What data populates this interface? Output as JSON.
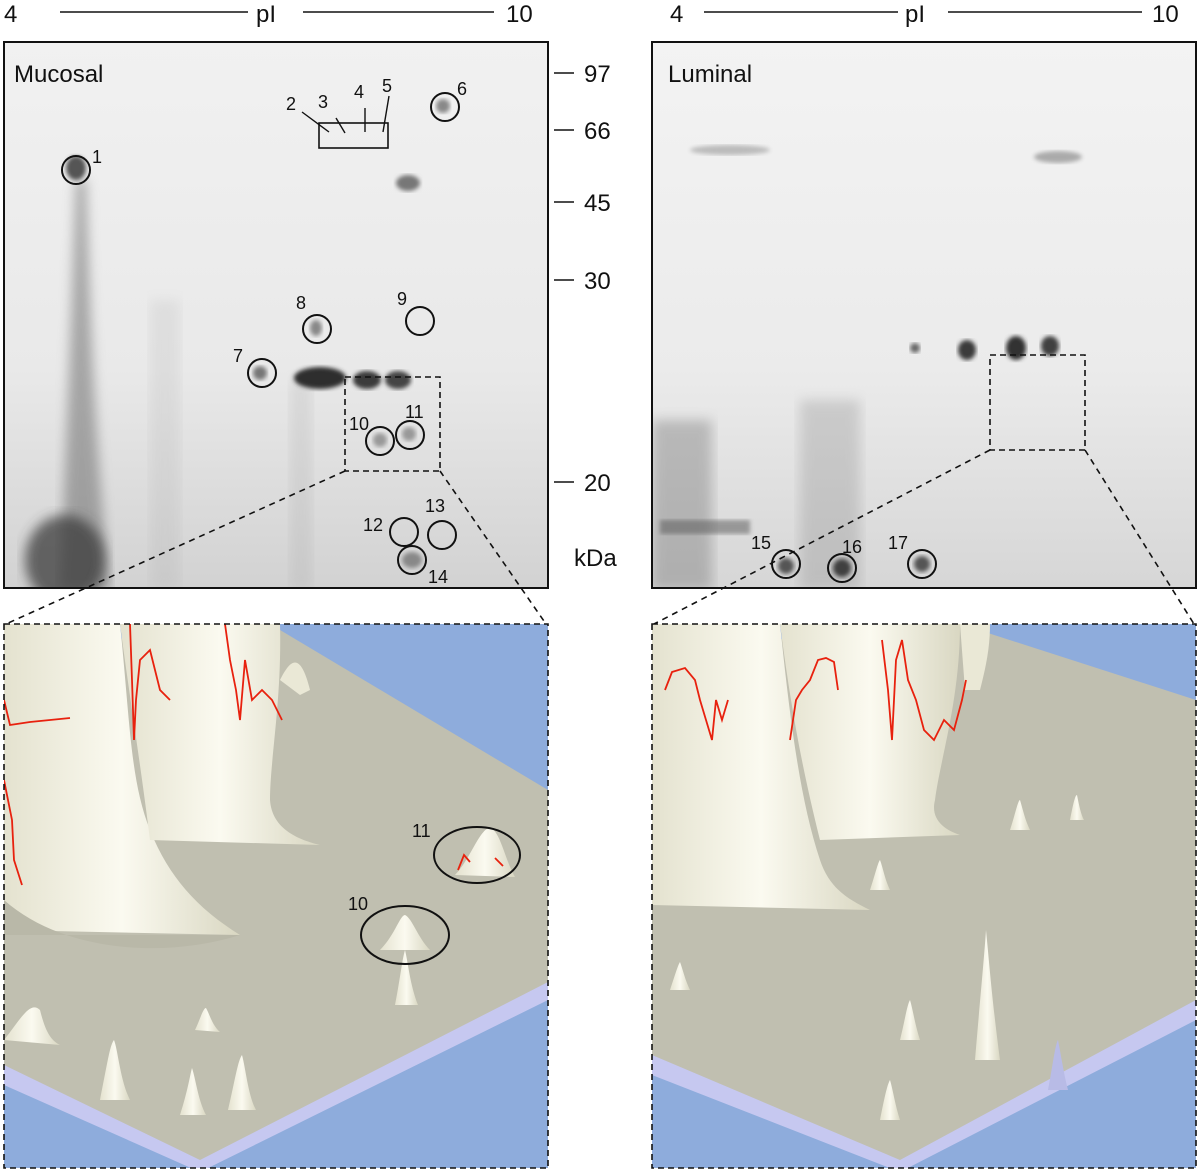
{
  "axis": {
    "ph_low": "4",
    "ph_high": "10",
    "ph_label": "pI",
    "mw_unit": "kDa"
  },
  "mw_markers": [
    "97",
    "66",
    "45",
    "30",
    "20"
  ],
  "panels": {
    "left": {
      "title": "Mucosal"
    },
    "right": {
      "title": "Luminal"
    }
  },
  "spots": {
    "s1": "1",
    "s2": "2",
    "s3": "3",
    "s4": "4",
    "s5": "5",
    "s6": "6",
    "s7": "7",
    "s8": "8",
    "s9": "9",
    "s10": "10",
    "s11": "11",
    "s12": "12",
    "s13": "13",
    "s14": "14",
    "s15": "15",
    "s16": "16",
    "s17": "17"
  },
  "zoom_labels": {
    "z10": "10",
    "z11": "11"
  },
  "colors": {
    "gel_bg": "#ececec",
    "zoom_sky": "#8eacdc",
    "zoom_surface": "#c0bfb0",
    "zoom_edge": "#c6c8f0",
    "peak": "#f2f0e0",
    "trace": "#e8210e"
  }
}
